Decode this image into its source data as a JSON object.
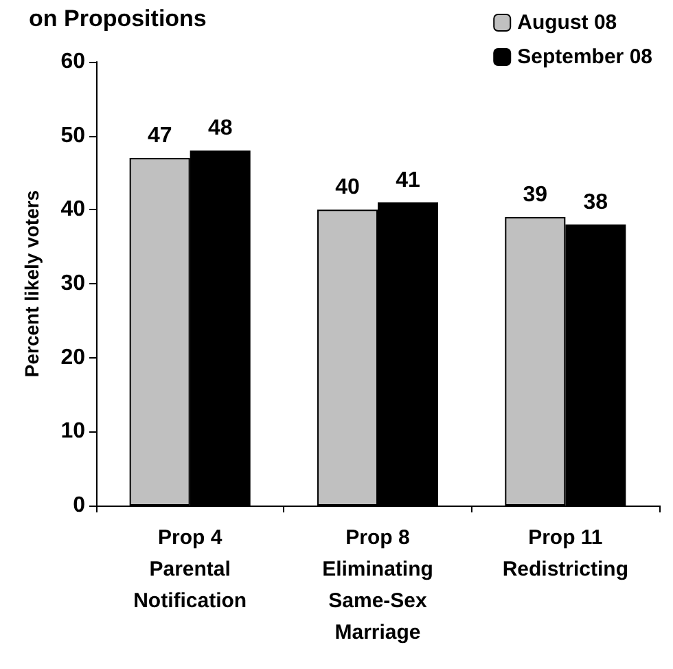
{
  "chart_data": {
    "type": "bar",
    "title": "on Propositions",
    "ylabel": "Percent likely voters",
    "categories": [
      "Prop 4\nParental\nNotification",
      "Prop 8\nEliminating\nSame-Sex\nMarriage",
      "Prop 11\nRedistricting"
    ],
    "series": [
      {
        "name": "August 08",
        "color": "#c0c0c0",
        "values": [
          47,
          40,
          39
        ]
      },
      {
        "name": "September 08",
        "color": "#000000",
        "values": [
          48,
          41,
          38
        ]
      }
    ],
    "ylim": [
      0,
      60
    ],
    "yticks": [
      0,
      10,
      20,
      30,
      40,
      50,
      60
    ],
    "grid": false,
    "legend": "top right",
    "data_labels": true
  }
}
